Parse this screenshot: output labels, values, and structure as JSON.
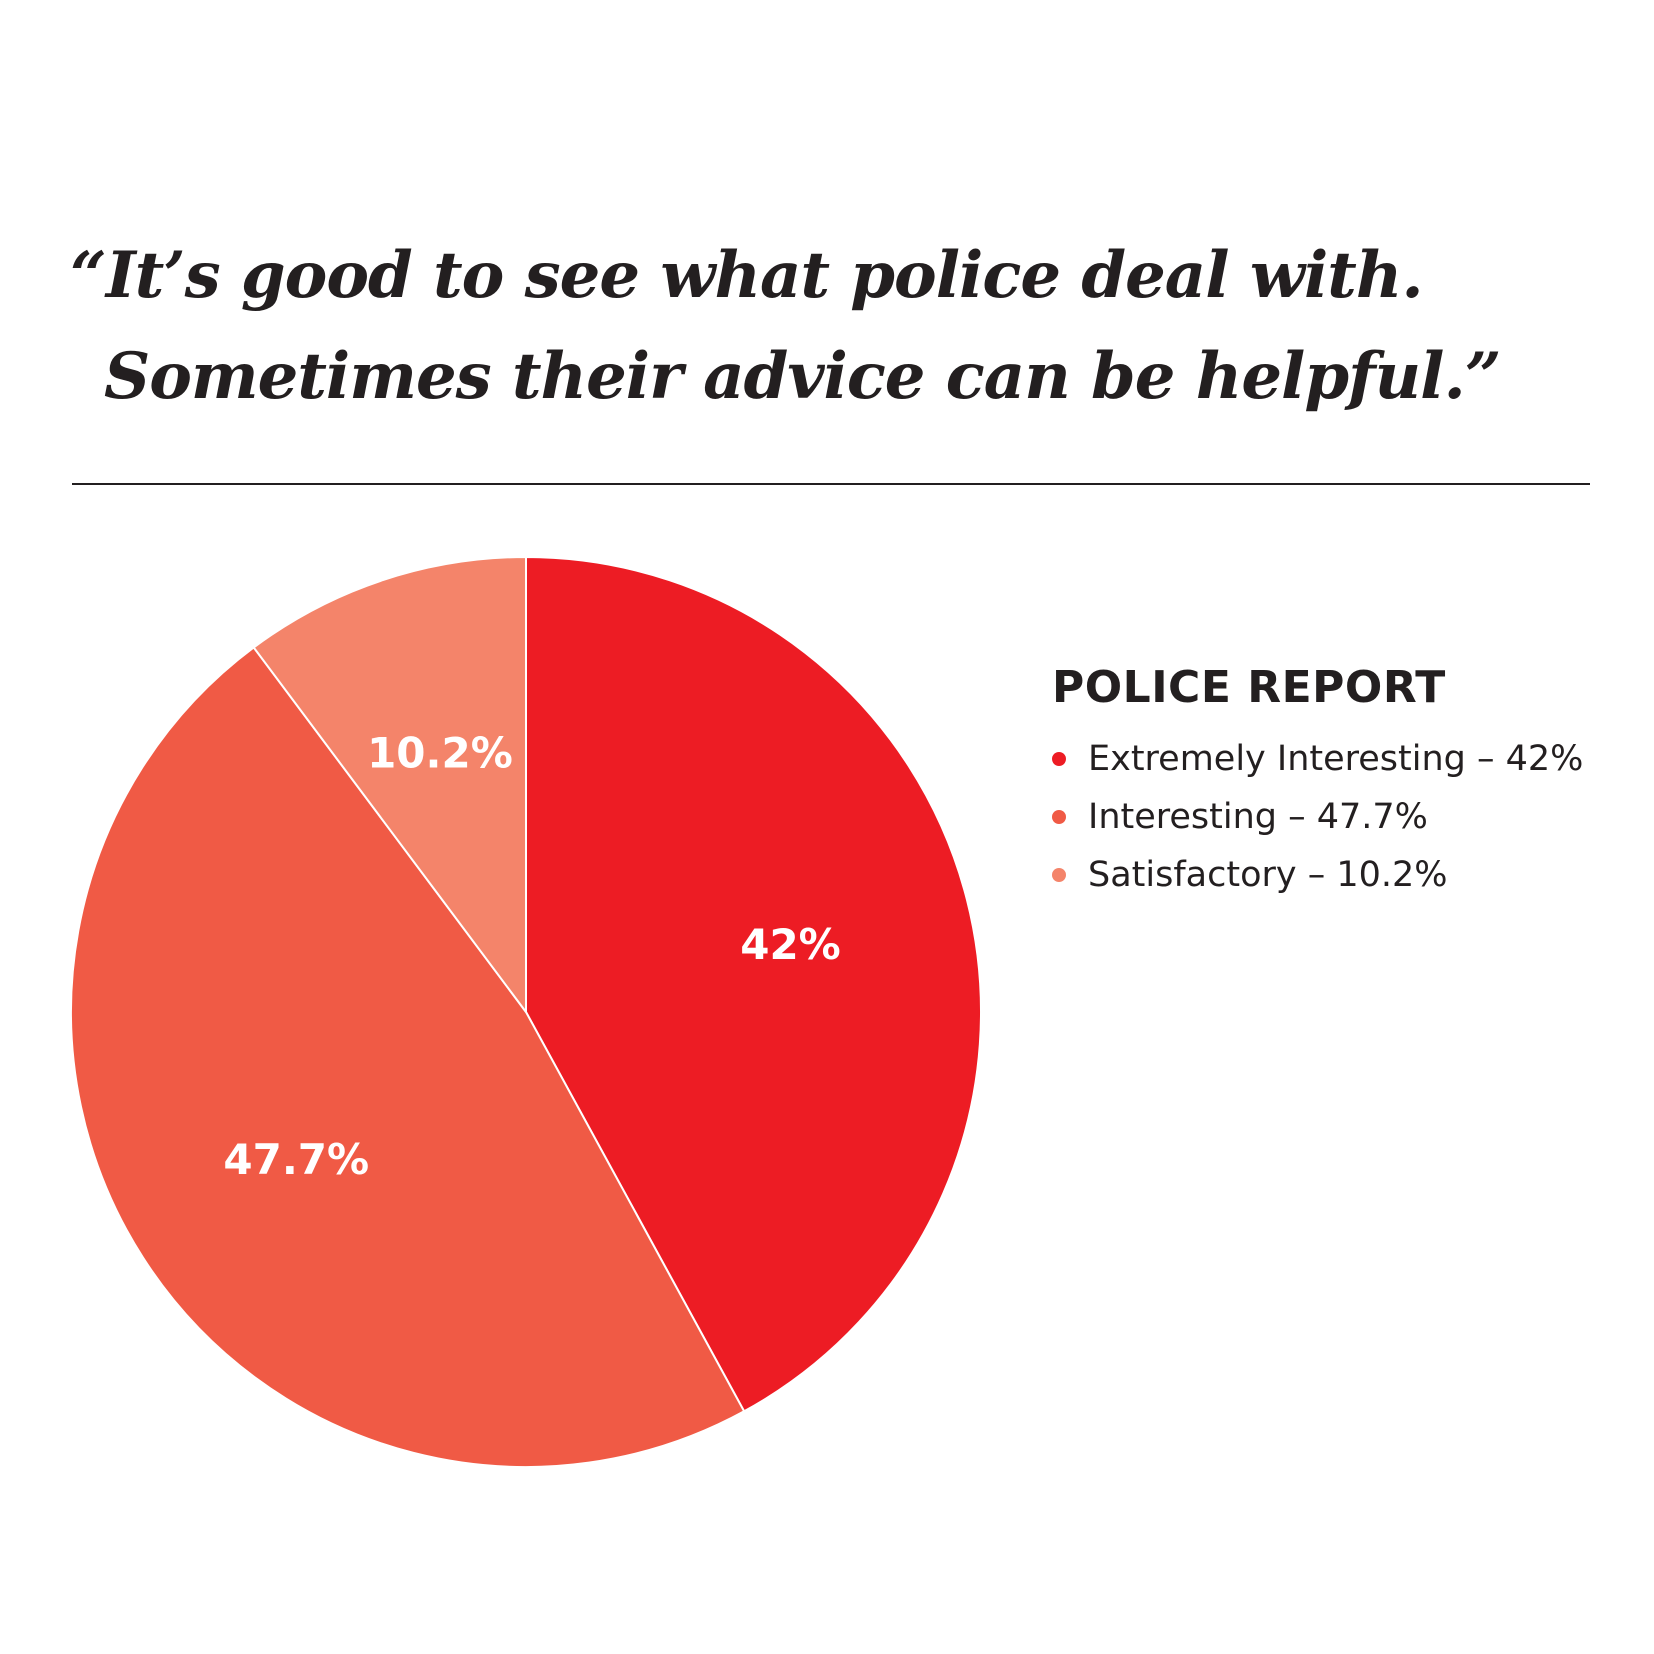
{
  "quote": {
    "line1": "“It’s good to see what police deal with.",
    "line2": "Sometimes their advice can be helpful.”"
  },
  "chart_data": {
    "type": "pie",
    "title": "POLICE REPORT",
    "legend_position": "right",
    "slices": [
      {
        "label": "Extremely Interesting",
        "value": 42,
        "display": "42%",
        "legend_text": "Extremely Interesting – 42%",
        "color": "#ed1c24"
      },
      {
        "label": "Interesting",
        "value": 47.7,
        "display": "47.7%",
        "legend_text": "Interesting – 47.7%",
        "color": "#f05a45"
      },
      {
        "label": "Satisfactory",
        "value": 10.2,
        "display": "10.2%",
        "legend_text": "Satisfactory – 10.2%",
        "color": "#f4846a"
      }
    ]
  },
  "colors": {
    "text": "#231f20",
    "slice_label": "#ffffff",
    "background": "#ffffff"
  }
}
